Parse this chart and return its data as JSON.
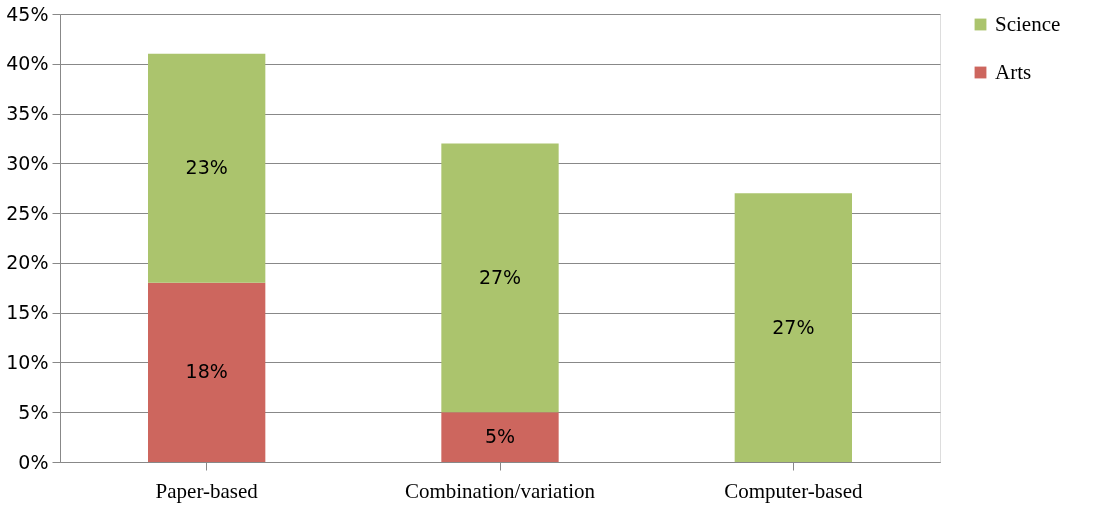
{
  "chart_data": {
    "type": "bar",
    "stacked": true,
    "categories": [
      "Paper-based",
      "Combination/variation",
      "Computer-based"
    ],
    "series": [
      {
        "name": "Arts",
        "color": "#cd665e",
        "values": [
          18,
          5,
          0
        ],
        "value_labels": [
          "18%",
          "5%",
          null
        ]
      },
      {
        "name": "Science",
        "color": "#abc46d",
        "values": [
          23,
          27,
          27
        ],
        "value_labels": [
          "23%",
          "27%",
          "27%"
        ]
      }
    ],
    "ylim": [
      0,
      45
    ],
    "yticks": [
      {
        "value": 0,
        "label": "0%"
      },
      {
        "value": 5,
        "label": "5%"
      },
      {
        "value": 10,
        "label": "10%"
      },
      {
        "value": 15,
        "label": "15%"
      },
      {
        "value": 20,
        "label": "20%"
      },
      {
        "value": 25,
        "label": "25%"
      },
      {
        "value": 30,
        "label": "30%"
      },
      {
        "value": 35,
        "label": "35%"
      },
      {
        "value": 40,
        "label": "40%"
      },
      {
        "value": 45,
        "label": "45%"
      }
    ],
    "grid": "y",
    "legend": "right"
  }
}
